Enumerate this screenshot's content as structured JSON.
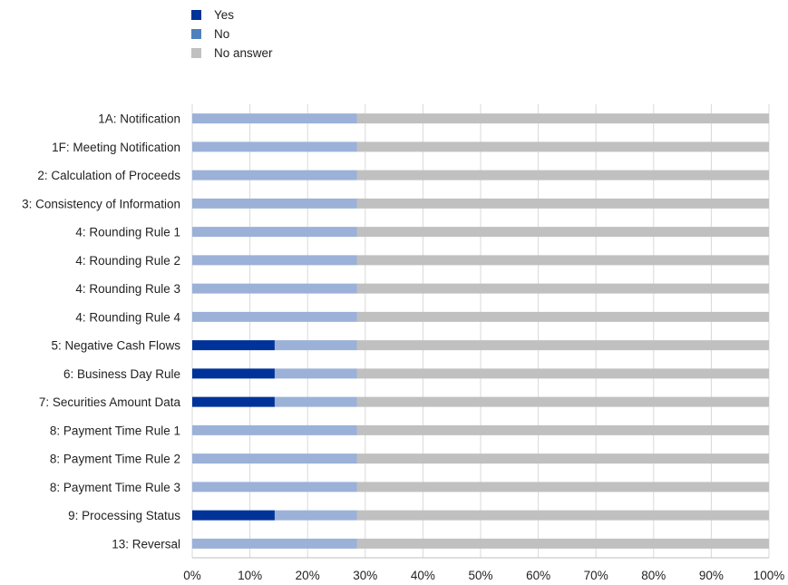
{
  "chart_data": {
    "type": "bar",
    "stacked": true,
    "orientation": "horizontal",
    "percent_scale": true,
    "categories": [
      "1A: Notification",
      "1F: Meeting Notification",
      "2: Calculation of Proceeds",
      "3: Consistency of Information",
      "4: Rounding Rule 1",
      "4: Rounding Rule 2",
      "4: Rounding Rule 3",
      "4: Rounding Rule 4",
      "5: Negative Cash Flows",
      "6: Business Day Rule",
      "7: Securities Amount Data",
      "8: Payment Time Rule 1",
      "8: Payment Time Rule 2",
      "8: Payment Time Rule 3",
      "9: Processing Status",
      "13: Reversal"
    ],
    "series": [
      {
        "name": "Yes",
        "color": "#003399",
        "values": [
          0,
          0,
          0,
          0,
          0,
          0,
          0,
          0,
          14.3,
          14.3,
          14.3,
          0,
          0,
          0,
          14.3,
          0
        ]
      },
      {
        "name": "No",
        "color": "#4f81bd",
        "bar_color": "#9bb1d8",
        "values": [
          28.6,
          28.6,
          28.6,
          28.6,
          28.6,
          28.6,
          28.6,
          28.6,
          14.3,
          14.3,
          14.3,
          28.6,
          28.6,
          28.6,
          14.3,
          28.6
        ]
      },
      {
        "name": "No answer",
        "color": "#c0c0c0",
        "values": [
          71.4,
          71.4,
          71.4,
          71.4,
          71.4,
          71.4,
          71.4,
          71.4,
          71.4,
          71.4,
          71.4,
          71.4,
          71.4,
          71.4,
          71.4,
          71.4
        ]
      }
    ],
    "xlim": [
      0,
      100
    ],
    "x_ticks": [
      "0%",
      "10%",
      "20%",
      "30%",
      "40%",
      "50%",
      "60%",
      "70%",
      "80%",
      "90%",
      "100%"
    ],
    "grid": true,
    "legend_position": "top-left"
  }
}
